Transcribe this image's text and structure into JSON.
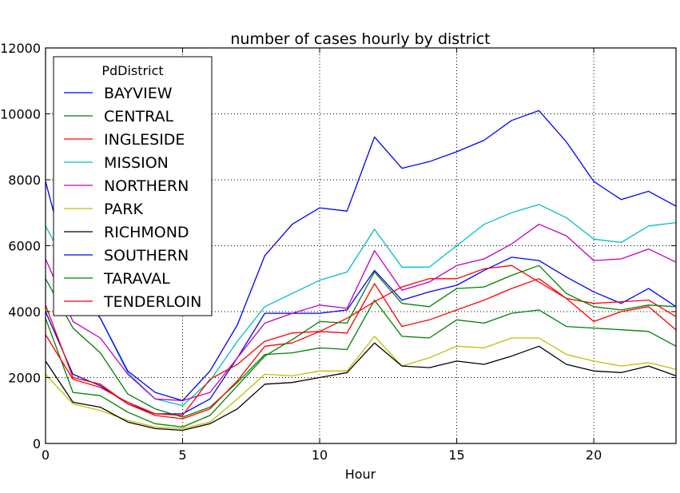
{
  "chart_data": {
    "type": "line",
    "title": "number of cases hourly by district",
    "xlabel": "Hour",
    "ylabel": "",
    "xlim": [
      0,
      23
    ],
    "ylim": [
      0,
      12000
    ],
    "xticks": [
      "0",
      "5",
      "10",
      "15",
      "20"
    ],
    "yticks": [
      "0",
      "2000",
      "4000",
      "6000",
      "8000",
      "10000",
      "12000"
    ],
    "grid": true,
    "legend": {
      "title": "PdDistrict",
      "placement": "top-left"
    },
    "x": [
      0,
      1,
      2,
      3,
      4,
      5,
      6,
      7,
      8,
      9,
      10,
      11,
      12,
      13,
      14,
      15,
      16,
      17,
      18,
      19,
      20,
      21,
      22,
      23
    ],
    "series": [
      {
        "name": "BAYVIEW",
        "color": "#0000ff",
        "values": [
          4000,
          2100,
          1750,
          1200,
          900,
          900,
          1350,
          2600,
          3950,
          3950,
          3950,
          4050,
          5250,
          4350,
          4600,
          4800,
          5250,
          5650,
          5550,
          5050,
          4600,
          4250,
          4700,
          4150
        ]
      },
      {
        "name": "CENTRAL",
        "color": "#008000",
        "values": [
          5000,
          3500,
          2750,
          1500,
          1050,
          800,
          1100,
          1850,
          2700,
          2750,
          2900,
          2850,
          4350,
          3250,
          3200,
          3750,
          3650,
          3950,
          4050,
          3550,
          3500,
          3450,
          3400,
          2950
        ]
      },
      {
        "name": "INGLESIDE",
        "color": "#ff0000",
        "values": [
          4200,
          2000,
          1800,
          1200,
          850,
          750,
          1050,
          1900,
          2950,
          3050,
          3400,
          3800,
          4300,
          4750,
          5000,
          5000,
          5300,
          5400,
          4900,
          4400,
          4250,
          4300,
          4350,
          3850
        ]
      },
      {
        "name": "MISSION",
        "color": "#00bfbf",
        "values": [
          6600,
          5050,
          3800,
          2150,
          1350,
          1150,
          1900,
          3100,
          4150,
          4550,
          4950,
          5200,
          6500,
          5350,
          5350,
          6000,
          6650,
          7000,
          7250,
          6850,
          6200,
          6100,
          6600,
          6700
        ]
      },
      {
        "name": "NORTHERN",
        "color": "#bf00bf",
        "values": [
          5600,
          3700,
          3200,
          2100,
          1350,
          1300,
          1550,
          2600,
          3650,
          3950,
          4200,
          4100,
          5850,
          4650,
          4900,
          5400,
          5600,
          6050,
          6650,
          6300,
          5550,
          5600,
          5900,
          5500
        ]
      },
      {
        "name": "PARK",
        "color": "#bfbf00",
        "values": [
          2100,
          1200,
          1000,
          700,
          500,
          450,
          650,
          1350,
          2100,
          2050,
          2200,
          2200,
          3250,
          2350,
          2600,
          2950,
          2900,
          3200,
          3200,
          2700,
          2500,
          2350,
          2450,
          2250
        ]
      },
      {
        "name": "RICHMOND",
        "color": "#000000",
        "values": [
          2500,
          1250,
          1100,
          650,
          450,
          400,
          600,
          1050,
          1800,
          1850,
          2000,
          2150,
          3050,
          2350,
          2300,
          2500,
          2400,
          2650,
          2950,
          2400,
          2200,
          2150,
          2350,
          2050
        ]
      },
      {
        "name": "SOUTHERN",
        "color": "#0000ff",
        "values": [
          7950,
          4800,
          3800,
          2200,
          1550,
          1300,
          2200,
          3600,
          5700,
          6650,
          7150,
          7050,
          9300,
          8350,
          8550,
          8850,
          9200,
          9800,
          10100,
          9150,
          7950,
          7400,
          7650,
          7200
        ]
      },
      {
        "name": "TARAVAL",
        "color": "#008000",
        "values": [
          3800,
          1550,
          1450,
          950,
          600,
          500,
          850,
          1750,
          2650,
          3150,
          3700,
          3650,
          5200,
          4250,
          4150,
          4700,
          4750,
          5100,
          5400,
          4550,
          4150,
          4050,
          4200,
          4150
        ]
      },
      {
        "name": "TENDERLOIN",
        "color": "#ff0000",
        "values": [
          3300,
          1950,
          1700,
          1250,
          900,
          850,
          1950,
          2400,
          3100,
          3350,
          3400,
          3350,
          4850,
          3550,
          3750,
          4050,
          4350,
          4700,
          5000,
          4400,
          3700,
          4000,
          4150,
          3450
        ]
      }
    ]
  }
}
